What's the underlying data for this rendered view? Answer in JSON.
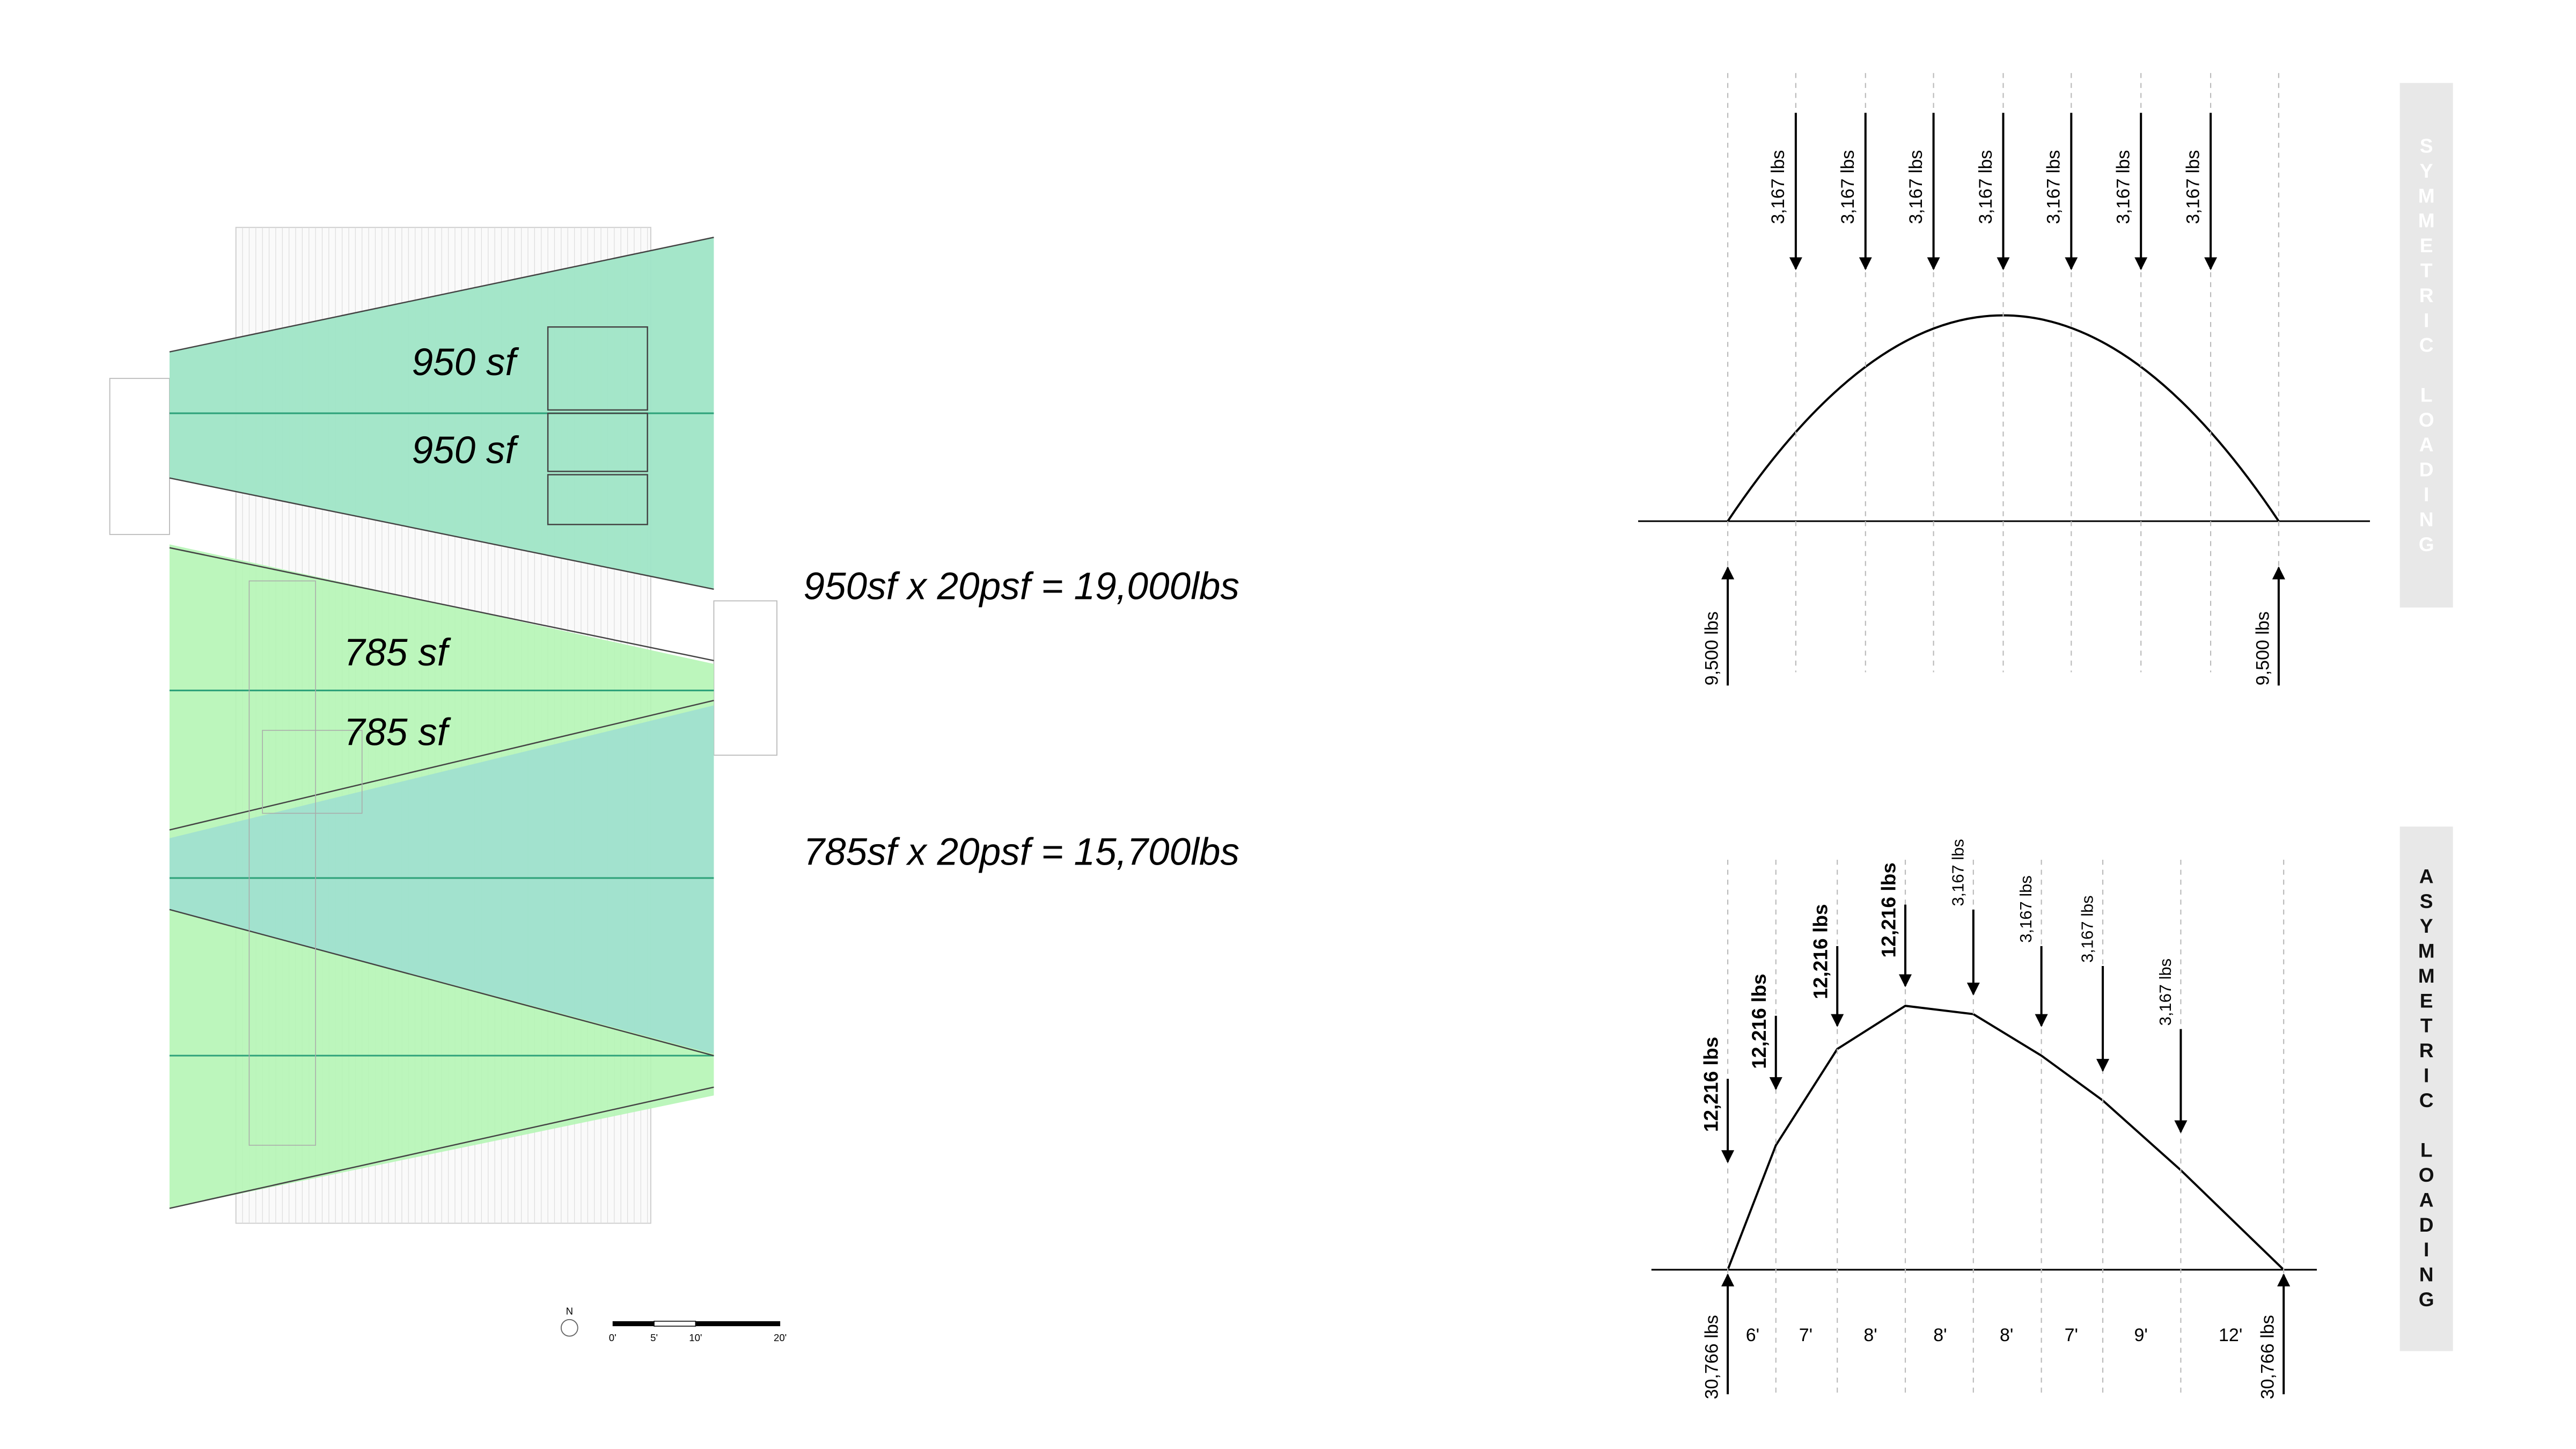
{
  "plan": {
    "areas": [
      "950 sf",
      "950 sf",
      "785 sf",
      "785 sf"
    ],
    "equations": [
      "950sf x 20psf = 19,000lbs",
      "785sf x 20psf = 15,700lbs"
    ],
    "north": "N",
    "scale": [
      "0'",
      "5'",
      "10'",
      "20'"
    ]
  },
  "symmetric": {
    "title": "SYMMETRIC LOADING",
    "loads": [
      "3,167 lbs",
      "3,167 lbs",
      "3,167 lbs",
      "3,167 lbs",
      "3,167 lbs",
      "3,167 lbs",
      "3,167 lbs"
    ],
    "reactions": [
      "9,500 lbs",
      "9,500 lbs"
    ]
  },
  "asymmetric": {
    "title": "ASYMMETRIC LOADING",
    "loads": [
      "12,216 lbs",
      "12,216 lbs",
      "12,216 lbs",
      "12,216 lbs",
      "3,167 lbs",
      "3,167 lbs",
      "3,167 lbs",
      "3,167 lbs"
    ],
    "reactions": [
      "30,766 lbs",
      "30,766 lbs"
    ],
    "spans": [
      "6'",
      "7'",
      "8'",
      "8'",
      "8'",
      "7'",
      "9'",
      "12'"
    ]
  }
}
